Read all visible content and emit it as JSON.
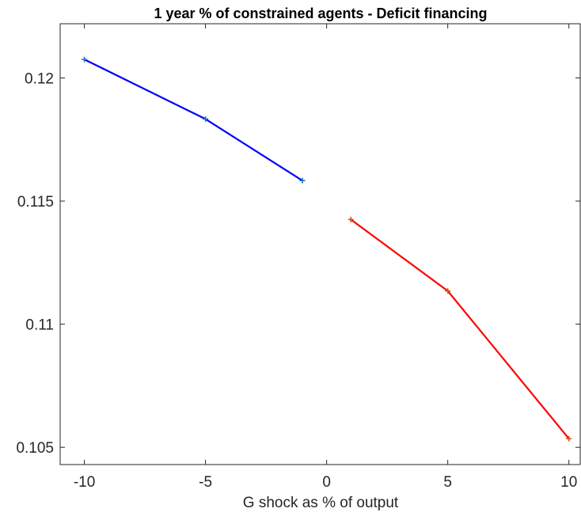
{
  "chart_data": {
    "type": "line",
    "title": "1 year % of constrained agents - Deficit financing",
    "xlabel": "G shock as % of output",
    "ylabel": "",
    "xlim": [
      -11,
      10.5
    ],
    "ylim": [
      0.1043,
      0.1222
    ],
    "xticks": [
      -10,
      -5,
      0,
      5,
      10
    ],
    "xtick_labels": [
      "-10",
      "-5",
      "0",
      "5",
      "10"
    ],
    "yticks": [
      0.105,
      0.11,
      0.115,
      0.12
    ],
    "ytick_labels": [
      "0.105",
      "0.11",
      "0.115",
      "0.12"
    ],
    "grid": false,
    "series": [
      {
        "color": "#0000ff",
        "marker_color": "#1f77b4",
        "x": [
          -10,
          -5,
          -1
        ],
        "y": [
          0.12075,
          0.11833,
          0.11583
        ]
      },
      {
        "color": "#ff0000",
        "marker_color": "#d95319",
        "x": [
          1,
          5,
          10
        ],
        "y": [
          0.11425,
          0.11135,
          0.10535
        ]
      }
    ]
  }
}
